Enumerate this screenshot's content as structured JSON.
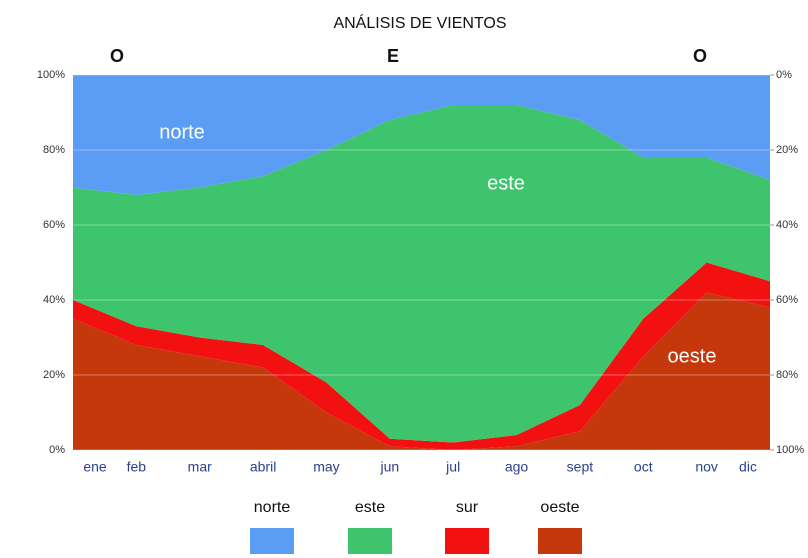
{
  "chart_data": {
    "type": "stacked_area",
    "title": "ANÁLISIS DE VIENTOS",
    "annotations": [
      "O",
      "E",
      "O",
      "norte",
      "este",
      "oeste"
    ],
    "categories": [
      "ene",
      "feb",
      "mar",
      "abril",
      "may",
      "jun",
      "jul",
      "ago",
      "sept",
      "oct",
      "nov",
      "dic"
    ],
    "series": [
      {
        "name": "oeste",
        "color": "#c4380c",
        "values": [
          35,
          28,
          25,
          22,
          10,
          1,
          0,
          1,
          5,
          25,
          42,
          38
        ]
      },
      {
        "name": "sur",
        "color": "#f21010",
        "values": [
          5,
          5,
          5,
          6,
          8,
          2,
          2,
          3,
          7,
          10,
          8,
          7
        ]
      },
      {
        "name": "este",
        "color": "#3ec46d",
        "values": [
          30,
          35,
          40,
          45,
          62,
          85,
          90,
          88,
          76,
          43,
          28,
          27
        ]
      },
      {
        "name": "norte",
        "color": "#5b9cf5",
        "values": [
          30,
          32,
          30,
          27,
          20,
          12,
          8,
          8,
          12,
          22,
          22,
          28
        ]
      }
    ],
    "legend_order": [
      3,
      2,
      1,
      0
    ],
    "ylim": [
      0,
      100
    ],
    "yticks": [
      {
        "value": 0,
        "label": "0%"
      },
      {
        "value": 20,
        "label": "20%"
      },
      {
        "value": 40,
        "label": "40%"
      },
      {
        "value": 60,
        "label": "60%"
      },
      {
        "value": 80,
        "label": "80%"
      },
      {
        "value": 100,
        "label": "100%"
      }
    ],
    "y2lim": [
      100,
      0
    ],
    "y2ticks": [
      {
        "value": 0,
        "label": "0%"
      },
      {
        "value": 20,
        "label": "20%"
      },
      {
        "value": 40,
        "label": "40%"
      },
      {
        "value": 60,
        "label": "60%"
      },
      {
        "value": 80,
        "label": "80%"
      },
      {
        "value": 100,
        "label": "100%"
      }
    ],
    "grid": true,
    "legend": "bottom"
  }
}
